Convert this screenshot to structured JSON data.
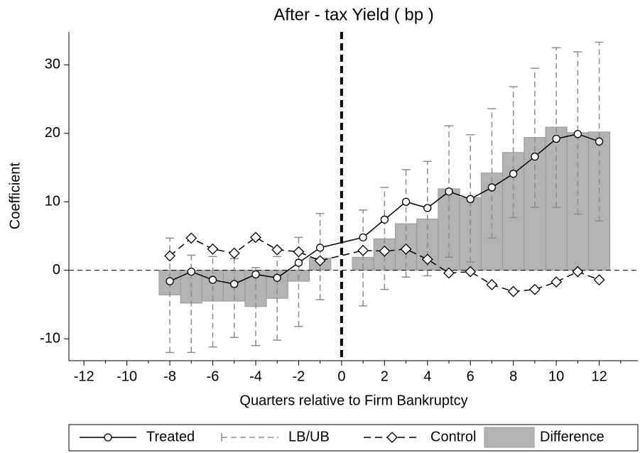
{
  "chart_data": {
    "type": "line",
    "title": "After - tax Yield ( bp )",
    "x_label": "Quarters relative to Firm Bankruptcy",
    "y_label": "Coefficient",
    "x": [
      -8,
      -7,
      -6,
      -5,
      -4,
      -3,
      -2,
      -1,
      1,
      2,
      3,
      4,
      5,
      6,
      7,
      8,
      9,
      10,
      11,
      12
    ],
    "series": [
      {
        "name": "Treated",
        "type": "line",
        "color": "#000000",
        "marker": "circle",
        "dash": false,
        "values": [
          -1.6,
          -0.2,
          -1.4,
          -2.0,
          -0.6,
          -1.1,
          1.1,
          3.3,
          4.8,
          7.4,
          10.0,
          9.1,
          11.5,
          10.4,
          12.1,
          14.1,
          16.6,
          19.2,
          19.9,
          18.8
        ]
      },
      {
        "name": "LB/UB",
        "type": "errorbar",
        "color": "#8c8c8c",
        "lower": [
          -12.0,
          -12.0,
          -11.2,
          -9.8,
          -11.0,
          -10.2,
          -8.2,
          -4.3,
          -5.2,
          -2.8,
          -1.0,
          -0.8,
          1.9,
          1.2,
          4.7,
          7.7,
          9.2,
          9.2,
          8.2,
          7.2
        ],
        "upper": [
          4.7,
          2.2,
          2.0,
          1.7,
          0.4,
          2.0,
          4.8,
          8.3,
          8.8,
          12.1,
          14.7,
          15.9,
          21.1,
          19.8,
          23.6,
          26.8,
          29.5,
          32.5,
          31.9,
          33.3
        ]
      },
      {
        "name": "Control",
        "type": "line",
        "color": "#000000",
        "marker": "diamond",
        "dash": true,
        "values": [
          2.1,
          4.7,
          3.1,
          2.5,
          4.8,
          3.0,
          2.7,
          1.4,
          2.9,
          2.8,
          3.1,
          1.6,
          -0.4,
          -0.2,
          -2.1,
          -3.1,
          -2.8,
          -1.7,
          -0.2,
          -1.4
        ]
      },
      {
        "name": "Difference",
        "type": "bar",
        "color": "#b3b3b3",
        "values": [
          -3.6,
          -4.8,
          -4.5,
          -4.5,
          -5.3,
          -4.1,
          -1.6,
          1.8,
          1.9,
          4.6,
          6.8,
          7.5,
          11.9,
          10.6,
          14.2,
          17.2,
          19.4,
          20.9,
          20.1,
          20.2
        ]
      }
    ],
    "xlim": [
      -12.7,
      13.8
    ],
    "ylim": [
      -13.2,
      34.8
    ],
    "xticks": [
      -12,
      -10,
      -8,
      -6,
      -4,
      -2,
      0,
      2,
      4,
      6,
      8,
      10,
      12
    ],
    "xticks_minor": [
      -11,
      -9,
      -7,
      -5,
      -3,
      -1,
      1,
      3,
      5,
      7,
      9,
      11,
      13
    ],
    "yticks": [
      -10,
      0,
      10,
      20,
      30
    ],
    "vline": 0,
    "hline": 0,
    "legend": "bottom"
  }
}
